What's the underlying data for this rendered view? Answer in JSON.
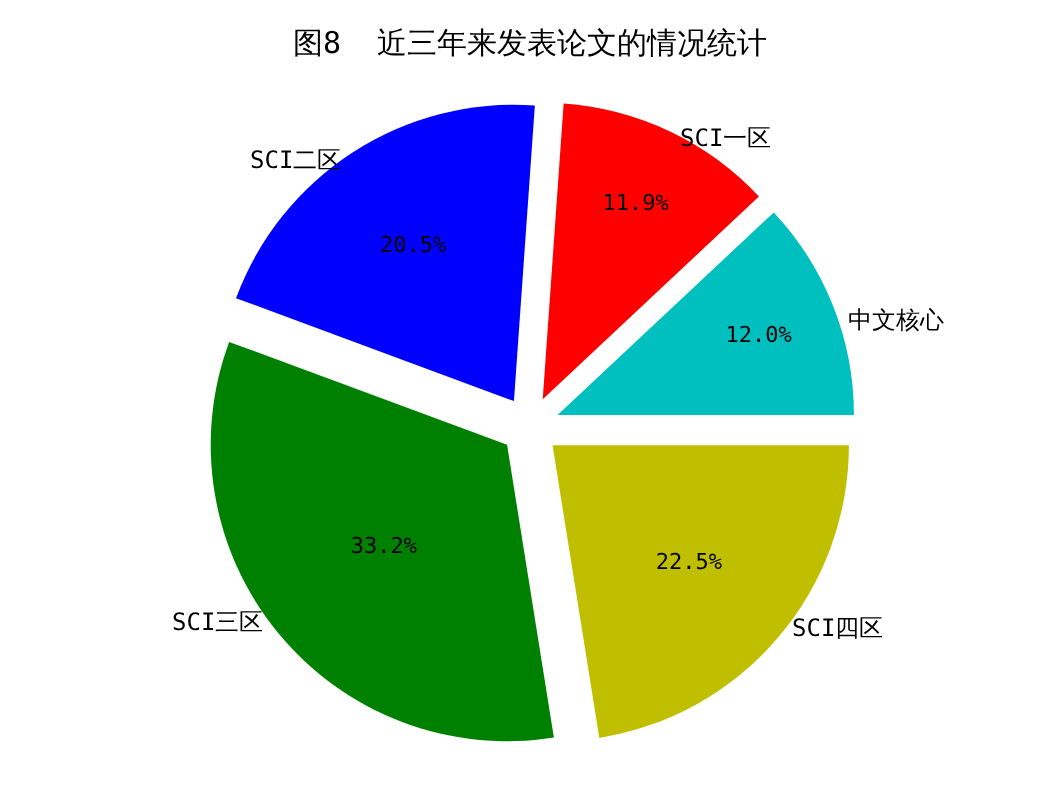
{
  "chart_data": {
    "type": "pie",
    "title": "图8  近三年来发表论文的情况统计",
    "categories": [
      "中文核心",
      "SCI一区",
      "SCI二区",
      "SCI三区",
      "SCI四区"
    ],
    "values": [
      12.0,
      11.9,
      20.5,
      33.2,
      22.5
    ],
    "colors": [
      "#00bfbf",
      "#ff0000",
      "#0000ff",
      "#008000",
      "#bfbf00"
    ],
    "value_labels": [
      "12.0%",
      "11.9%",
      "20.5%",
      "33.2%",
      "22.5%"
    ]
  }
}
